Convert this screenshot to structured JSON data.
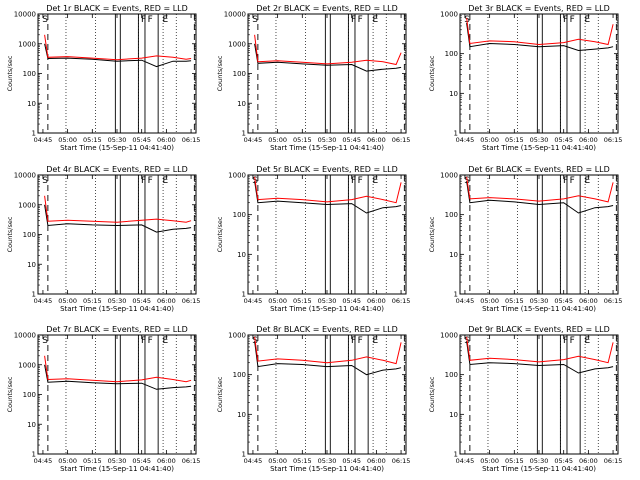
{
  "figure": {
    "xlabel": "Start Time (15-Sep-11 04:41:40)",
    "ylabel": "Counts/sec",
    "x_ticks": [
      "04:45",
      "05:00",
      "05:15",
      "05:30",
      "05:45",
      "06:00",
      "06:15"
    ],
    "colors": {
      "events": "#000000",
      "lld": "#ff0000",
      "axes": "#000000"
    }
  },
  "chart_data": [
    {
      "type": "line",
      "title": "Det 1r BLACK = Events, RED = LLD",
      "ylim": [
        1,
        10000
      ],
      "yscale": "log",
      "y_ticks": [
        "1",
        "10",
        "100",
        "1000",
        "10000"
      ],
      "x": [
        "04:46",
        "04:48",
        "05:00",
        "05:15",
        "05:30",
        "05:45",
        "05:54",
        "06:04",
        "06:12",
        "06:15"
      ],
      "series": [
        {
          "name": "Events",
          "values": [
            1000,
            320,
            330,
            300,
            260,
            280,
            170,
            260,
            260,
            270
          ]
        },
        {
          "name": "LLD",
          "values": [
            2000,
            350,
            370,
            330,
            290,
            330,
            390,
            350,
            300,
            320
          ]
        }
      ],
      "annotations": [
        "S",
        "F",
        "F",
        "E"
      ]
    },
    {
      "type": "line",
      "title": "Det 2r BLACK = Events, RED = LLD",
      "ylim": [
        1,
        10000
      ],
      "yscale": "log",
      "y_ticks": [
        "1",
        "10",
        "100",
        "1000",
        "10000"
      ],
      "x": [
        "04:46",
        "04:48",
        "05:00",
        "05:15",
        "05:30",
        "05:45",
        "05:54",
        "06:04",
        "06:12",
        "06:15"
      ],
      "series": [
        {
          "name": "Events",
          "values": [
            1000,
            220,
            240,
            210,
            190,
            200,
            120,
            140,
            150,
            160
          ]
        },
        {
          "name": "LLD",
          "values": [
            2000,
            250,
            270,
            240,
            210,
            240,
            280,
            250,
            200,
            500
          ]
        }
      ],
      "annotations": [
        "S",
        "F",
        "F",
        "E"
      ]
    },
    {
      "type": "line",
      "title": "Det 3r BLACK = Events, RED = LLD",
      "ylim": [
        1,
        1000
      ],
      "yscale": "log",
      "y_ticks": [
        "1",
        "10",
        "100",
        "1000"
      ],
      "x": [
        "04:46",
        "04:48",
        "05:00",
        "05:15",
        "05:30",
        "05:45",
        "05:54",
        "06:04",
        "06:12",
        "06:15"
      ],
      "series": [
        {
          "name": "Events",
          "values": [
            600,
            150,
            180,
            170,
            150,
            160,
            120,
            130,
            140,
            150
          ]
        },
        {
          "name": "LLD",
          "values": [
            800,
            180,
            210,
            200,
            170,
            190,
            230,
            200,
            170,
            550
          ]
        }
      ],
      "annotations": [
        "S",
        "F",
        "F",
        "E"
      ]
    },
    {
      "type": "line",
      "title": "Det 4r BLACK = Events, RED = LLD",
      "ylim": [
        1,
        10000
      ],
      "yscale": "log",
      "y_ticks": [
        "1",
        "10",
        "100",
        "1000",
        "10000"
      ],
      "x": [
        "04:46",
        "04:48",
        "05:00",
        "05:15",
        "05:30",
        "05:45",
        "05:54",
        "06:04",
        "06:12",
        "06:15"
      ],
      "series": [
        {
          "name": "Events",
          "values": [
            1000,
            200,
            230,
            210,
            200,
            210,
            120,
            150,
            160,
            170
          ]
        },
        {
          "name": "LLD",
          "values": [
            2000,
            280,
            300,
            280,
            260,
            300,
            330,
            290,
            260,
            290
          ]
        }
      ],
      "annotations": [
        "S",
        "F",
        "F",
        "E"
      ]
    },
    {
      "type": "line",
      "title": "Det 5r BLACK = Events, RED = LLD",
      "ylim": [
        1,
        1000
      ],
      "yscale": "log",
      "y_ticks": [
        "1",
        "10",
        "100",
        "1000"
      ],
      "x": [
        "04:46",
        "04:48",
        "05:00",
        "05:15",
        "05:30",
        "05:45",
        "05:54",
        "06:04",
        "06:12",
        "06:15"
      ],
      "series": [
        {
          "name": "Events",
          "values": [
            700,
            200,
            220,
            200,
            180,
            190,
            110,
            150,
            160,
            170
          ]
        },
        {
          "name": "LLD",
          "values": [
            900,
            240,
            260,
            240,
            210,
            240,
            290,
            240,
            200,
            650
          ]
        }
      ],
      "annotations": [
        "S",
        "F",
        "F",
        "E"
      ]
    },
    {
      "type": "line",
      "title": "Det 6r BLACK = Events, RED = LLD",
      "ylim": [
        1,
        1000
      ],
      "yscale": "log",
      "y_ticks": [
        "1",
        "10",
        "100",
        "1000"
      ],
      "x": [
        "04:46",
        "04:48",
        "05:00",
        "05:15",
        "05:30",
        "05:45",
        "05:54",
        "06:04",
        "06:12",
        "06:15"
      ],
      "series": [
        {
          "name": "Events",
          "values": [
            700,
            200,
            230,
            210,
            180,
            200,
            110,
            150,
            160,
            170
          ]
        },
        {
          "name": "LLD",
          "values": [
            900,
            250,
            270,
            250,
            220,
            250,
            300,
            250,
            210,
            650
          ]
        }
      ],
      "annotations": [
        "S",
        "F",
        "F",
        "E"
      ]
    },
    {
      "type": "line",
      "title": "Det 7r BLACK = Events, RED = LLD",
      "ylim": [
        1,
        10000
      ],
      "yscale": "log",
      "y_ticks": [
        "1",
        "10",
        "100",
        "1000",
        "10000"
      ],
      "x": [
        "04:46",
        "04:48",
        "05:00",
        "05:15",
        "05:30",
        "05:45",
        "05:54",
        "06:04",
        "06:12",
        "06:15"
      ],
      "series": [
        {
          "name": "Events",
          "values": [
            1000,
            260,
            280,
            250,
            230,
            240,
            150,
            170,
            180,
            190
          ]
        },
        {
          "name": "LLD",
          "values": [
            2000,
            320,
            340,
            300,
            270,
            310,
            380,
            320,
            270,
            300
          ]
        }
      ],
      "annotations": [
        "S",
        "F",
        "F",
        "E"
      ]
    },
    {
      "type": "line",
      "title": "Det 8r BLACK = Events, RED = LLD",
      "ylim": [
        1,
        1000
      ],
      "yscale": "log",
      "y_ticks": [
        "1",
        "10",
        "100",
        "1000"
      ],
      "x": [
        "04:46",
        "04:48",
        "05:00",
        "05:15",
        "05:30",
        "05:45",
        "05:54",
        "06:04",
        "06:12",
        "06:15"
      ],
      "series": [
        {
          "name": "Events",
          "values": [
            700,
            160,
            190,
            180,
            160,
            170,
            100,
            130,
            140,
            150
          ]
        },
        {
          "name": "LLD",
          "values": [
            900,
            220,
            250,
            230,
            200,
            230,
            280,
            230,
            190,
            650
          ]
        }
      ],
      "annotations": [
        "S",
        "F",
        "F",
        "E"
      ]
    },
    {
      "type": "line",
      "title": "Det 9r BLACK = Events, RED = LLD",
      "ylim": [
        1,
        1000
      ],
      "yscale": "log",
      "y_ticks": [
        "1",
        "10",
        "100",
        "1000"
      ],
      "x": [
        "04:46",
        "04:48",
        "05:00",
        "05:15",
        "05:30",
        "05:45",
        "05:54",
        "06:04",
        "06:12",
        "06:15"
      ],
      "series": [
        {
          "name": "Events",
          "values": [
            700,
            180,
            200,
            190,
            170,
            180,
            110,
            140,
            150,
            160
          ]
        },
        {
          "name": "LLD",
          "values": [
            900,
            230,
            260,
            240,
            210,
            240,
            290,
            240,
            200,
            650
          ]
        }
      ],
      "annotations": [
        "S",
        "F",
        "F",
        "E"
      ]
    }
  ]
}
